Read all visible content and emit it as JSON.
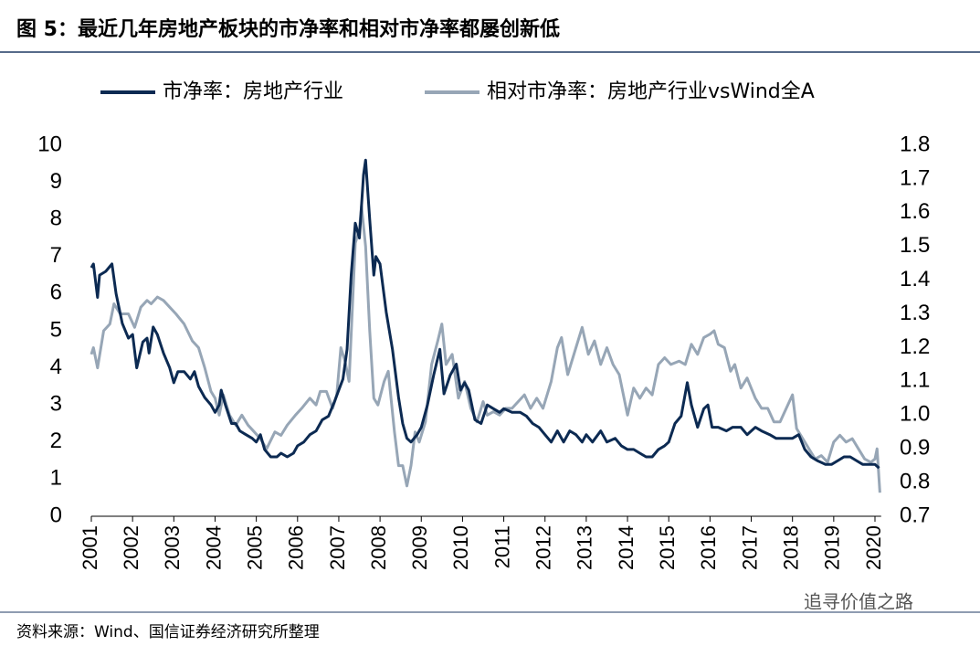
{
  "chart_data": {
    "type": "line",
    "title": "图 5：最近几年房地产板块的市净率和相对市净率都屡创新低",
    "source": "资料来源：Wind、国信证券经济研究所整理",
    "watermark": "追寻价值之路",
    "xlim": [
      2001,
      2020.15
    ],
    "xticks": [
      2001,
      2002,
      2003,
      2004,
      2005,
      2006,
      2007,
      2008,
      2009,
      2010,
      2011,
      2012,
      2013,
      2014,
      2015,
      2016,
      2017,
      2018,
      2019,
      2020
    ],
    "ylim": [
      0,
      10
    ],
    "yticks": [
      0,
      1,
      2,
      3,
      4,
      5,
      6,
      7,
      8,
      9,
      10
    ],
    "y2lim": [
      0.7,
      1.8
    ],
    "y2ticks": [
      0.7,
      0.8,
      0.9,
      {
        "value": 1,
        "label": "1.0"
      },
      1.1,
      1.2,
      1.3,
      1.4,
      1.5,
      1.6,
      1.7,
      1.8
    ],
    "grid": false,
    "legend": "top",
    "series": [
      {
        "name": "市净率：房地产行业",
        "color": "#0c2a52",
        "x": [
          2001.0,
          2001.05,
          2001.15,
          2001.2,
          2001.35,
          2001.5,
          2001.6,
          2001.75,
          2001.9,
          2002.0,
          2002.1,
          2002.25,
          2002.35,
          2002.4,
          2002.5,
          2002.6,
          2002.75,
          2002.9,
          2003.0,
          2003.1,
          2003.25,
          2003.4,
          2003.5,
          2003.6,
          2003.75,
          2003.9,
          2004.0,
          2004.1,
          2004.15,
          2004.25,
          2004.4,
          2004.5,
          2004.6,
          2004.75,
          2004.9,
          2005.0,
          2005.1,
          2005.2,
          2005.35,
          2005.5,
          2005.6,
          2005.75,
          2005.9,
          2006.0,
          2006.15,
          2006.3,
          2006.45,
          2006.6,
          2006.75,
          2006.9,
          2007.0,
          2007.1,
          2007.2,
          2007.3,
          2007.4,
          2007.5,
          2007.6,
          2007.65,
          2007.75,
          2007.85,
          2007.9,
          2008.0,
          2008.15,
          2008.3,
          2008.45,
          2008.55,
          2008.65,
          2008.75,
          2008.9,
          2009.0,
          2009.15,
          2009.3,
          2009.45,
          2009.55,
          2009.7,
          2009.85,
          2009.95,
          2010.05,
          2010.15,
          2010.3,
          2010.45,
          2010.6,
          2010.75,
          2010.9,
          2011.0,
          2011.2,
          2011.4,
          2011.55,
          2011.7,
          2011.85,
          2012.0,
          2012.15,
          2012.3,
          2012.45,
          2012.6,
          2012.75,
          2012.9,
          2013.0,
          2013.15,
          2013.35,
          2013.5,
          2013.7,
          2013.85,
          2014.0,
          2014.15,
          2014.3,
          2014.45,
          2014.6,
          2014.75,
          2014.9,
          2015.0,
          2015.15,
          2015.3,
          2015.45,
          2015.55,
          2015.7,
          2015.85,
          2015.95,
          2016.05,
          2016.2,
          2016.4,
          2016.55,
          2016.75,
          2016.9,
          2017.1,
          2017.25,
          2017.45,
          2017.6,
          2017.8,
          2018.0,
          2018.15,
          2018.3,
          2018.45,
          2018.6,
          2018.8,
          2018.95,
          2019.1,
          2019.25,
          2019.4,
          2019.55,
          2019.7,
          2019.85,
          2020.0,
          2020.1
        ],
        "values": [
          6.7,
          6.8,
          5.9,
          6.5,
          6.6,
          6.8,
          6.0,
          5.2,
          4.8,
          4.9,
          4.0,
          4.7,
          4.8,
          4.4,
          5.1,
          4.9,
          4.4,
          4.0,
          3.6,
          3.9,
          3.9,
          3.7,
          3.9,
          3.5,
          3.2,
          3.0,
          2.8,
          3.0,
          3.4,
          3.0,
          2.5,
          2.5,
          2.3,
          2.2,
          2.1,
          2.0,
          2.2,
          1.8,
          1.6,
          1.6,
          1.7,
          1.6,
          1.7,
          1.9,
          2.0,
          2.2,
          2.3,
          2.6,
          2.7,
          3.1,
          3.4,
          3.7,
          4.5,
          6.5,
          7.9,
          7.5,
          9.2,
          9.6,
          8.0,
          6.5,
          7.0,
          6.8,
          5.5,
          4.5,
          3.2,
          2.5,
          2.1,
          2.0,
          2.2,
          2.4,
          3.0,
          3.8,
          4.5,
          3.3,
          3.8,
          4.1,
          3.4,
          3.6,
          3.4,
          2.6,
          2.5,
          3.0,
          2.9,
          2.8,
          2.9,
          2.8,
          2.8,
          2.7,
          2.5,
          2.4,
          2.2,
          2.0,
          2.3,
          2.0,
          2.3,
          2.2,
          2.0,
          2.2,
          2.0,
          2.3,
          2.0,
          2.1,
          1.9,
          1.8,
          1.8,
          1.7,
          1.6,
          1.6,
          1.8,
          1.9,
          2.0,
          2.5,
          2.7,
          3.6,
          3.0,
          2.4,
          2.9,
          3.0,
          2.4,
          2.4,
          2.3,
          2.4,
          2.4,
          2.2,
          2.4,
          2.3,
          2.2,
          2.1,
          2.1,
          2.1,
          2.2,
          1.8,
          1.6,
          1.5,
          1.4,
          1.4,
          1.5,
          1.6,
          1.6,
          1.5,
          1.4,
          1.4,
          1.4,
          1.3
        ]
      },
      {
        "name": "相对市净率：房地产行业vsWind全A",
        "color": "#97a6b6",
        "axis": "y2",
        "x": [
          2001.0,
          2001.05,
          2001.15,
          2001.3,
          2001.45,
          2001.55,
          2001.7,
          2001.9,
          2002.05,
          2002.2,
          2002.35,
          2002.45,
          2002.6,
          2002.75,
          2002.9,
          2003.05,
          2003.25,
          2003.45,
          2003.6,
          2003.75,
          2003.9,
          2004.0,
          2004.1,
          2004.2,
          2004.35,
          2004.5,
          2004.65,
          2004.8,
          2004.95,
          2005.1,
          2005.25,
          2005.45,
          2005.6,
          2005.75,
          2005.95,
          2006.1,
          2006.3,
          2006.45,
          2006.55,
          2006.7,
          2006.85,
          2006.95,
          2007.05,
          2007.15,
          2007.25,
          2007.4,
          2007.5,
          2007.55,
          2007.65,
          2007.75,
          2007.85,
          2007.95,
          2008.1,
          2008.2,
          2008.35,
          2008.45,
          2008.55,
          2008.65,
          2008.75,
          2008.85,
          2008.95,
          2009.1,
          2009.25,
          2009.4,
          2009.5,
          2009.6,
          2009.75,
          2009.9,
          2010.05,
          2010.2,
          2010.35,
          2010.5,
          2010.6,
          2010.75,
          2010.9,
          2011.05,
          2011.2,
          2011.35,
          2011.5,
          2011.65,
          2011.8,
          2011.95,
          2012.15,
          2012.3,
          2012.4,
          2012.55,
          2012.75,
          2012.9,
          2013.05,
          2013.2,
          2013.35,
          2013.5,
          2013.65,
          2013.8,
          2014.0,
          2014.15,
          2014.3,
          2014.45,
          2014.6,
          2014.75,
          2014.9,
          2015.05,
          2015.25,
          2015.4,
          2015.55,
          2015.7,
          2015.85,
          2016.0,
          2016.1,
          2016.2,
          2016.35,
          2016.5,
          2016.6,
          2016.75,
          2016.9,
          2017.1,
          2017.25,
          2017.4,
          2017.55,
          2017.7,
          2017.85,
          2018.0,
          2018.1,
          2018.25,
          2018.4,
          2018.55,
          2018.7,
          2018.85,
          2019.0,
          2019.15,
          2019.3,
          2019.45,
          2019.6,
          2019.75,
          2019.9,
          2020.0,
          2020.05,
          2020.12
        ],
        "values": [
          1.18,
          1.2,
          1.14,
          1.25,
          1.27,
          1.33,
          1.3,
          1.3,
          1.26,
          1.32,
          1.34,
          1.33,
          1.35,
          1.34,
          1.32,
          1.3,
          1.27,
          1.22,
          1.2,
          1.14,
          1.07,
          1.05,
          1.0,
          1.06,
          1.0,
          0.97,
          1.0,
          0.97,
          0.95,
          0.93,
          0.9,
          0.95,
          0.94,
          0.97,
          1.0,
          1.02,
          1.05,
          1.03,
          1.07,
          1.07,
          1.02,
          1.06,
          1.2,
          1.16,
          1.1,
          1.51,
          1.55,
          1.62,
          1.5,
          1.25,
          1.05,
          1.03,
          1.1,
          1.13,
          0.95,
          0.85,
          0.85,
          0.79,
          0.85,
          0.95,
          0.92,
          0.98,
          1.15,
          1.22,
          1.27,
          1.15,
          1.18,
          1.05,
          1.1,
          1.02,
          0.98,
          1.04,
          1.0,
          1.01,
          1.0,
          1.02,
          1.02,
          1.04,
          1.06,
          1.02,
          1.05,
          1.02,
          1.1,
          1.2,
          1.23,
          1.12,
          1.2,
          1.26,
          1.18,
          1.22,
          1.15,
          1.2,
          1.15,
          1.12,
          1.0,
          1.08,
          1.05,
          1.08,
          1.06,
          1.15,
          1.17,
          1.15,
          1.16,
          1.15,
          1.21,
          1.18,
          1.23,
          1.24,
          1.25,
          1.21,
          1.2,
          1.13,
          1.15,
          1.08,
          1.11,
          1.05,
          1.02,
          1.02,
          0.98,
          0.98,
          1.02,
          1.06,
          0.96,
          0.93,
          0.9,
          0.87,
          0.88,
          0.86,
          0.92,
          0.94,
          0.92,
          0.93,
          0.9,
          0.87,
          0.86,
          0.87,
          0.9,
          0.77
        ]
      }
    ]
  }
}
